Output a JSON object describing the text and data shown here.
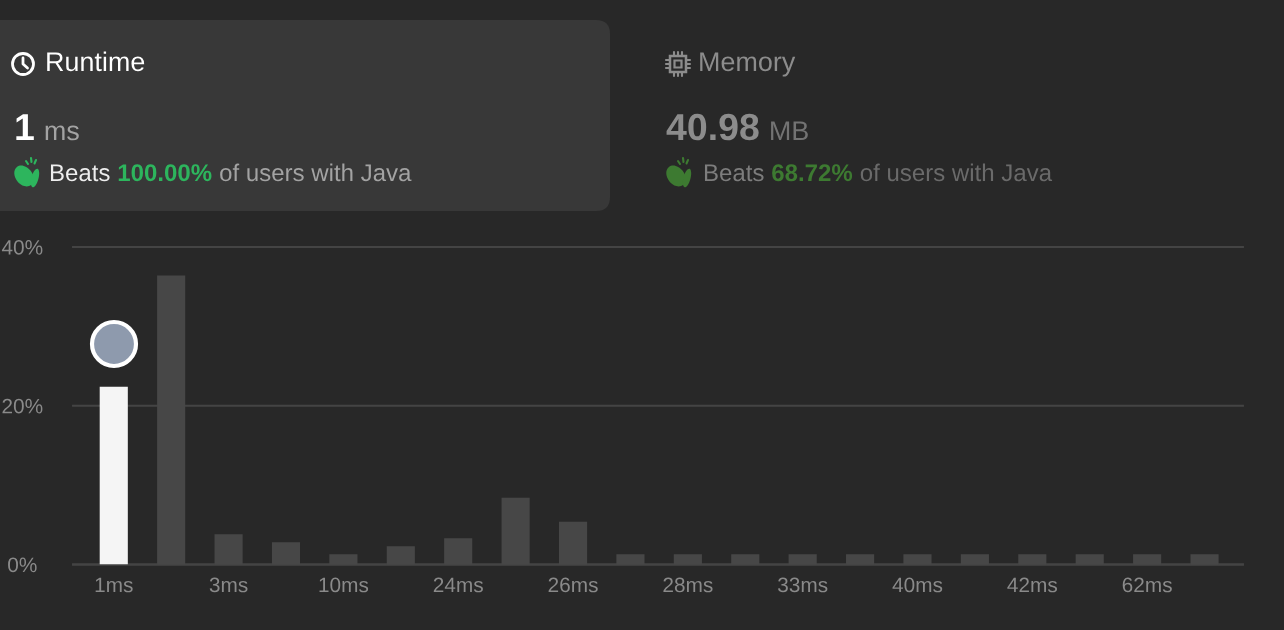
{
  "chart_data": {
    "type": "bar",
    "categories": [
      "1ms",
      null,
      "3ms",
      null,
      "10ms",
      null,
      "24ms",
      null,
      "26ms",
      null,
      "28ms",
      null,
      "33ms",
      null,
      "40ms",
      null,
      "42ms",
      null,
      "62ms",
      null
    ],
    "values": [
      22.4,
      36.4,
      3.8,
      2.8,
      1.3,
      2.3,
      3.3,
      8.4,
      5.4,
      1.3,
      1.3,
      1.3,
      1.3,
      1.3,
      1.3,
      1.3,
      1.3,
      1.3,
      1.3,
      1.3
    ],
    "colors": [
      "#f5f5f5",
      "#474747",
      "#474747",
      "#474747",
      "#474747",
      "#474747",
      "#474747",
      "#474747",
      "#474747",
      "#474747",
      "#474747",
      "#474747",
      "#474747",
      "#474747",
      "#474747",
      "#474747",
      "#474747",
      "#474747",
      "#474747",
      "#474747"
    ],
    "ylim": [
      0,
      40
    ],
    "yticks": [
      {
        "value": 0,
        "label": "0%"
      },
      {
        "value": 20,
        "label": "20%"
      },
      {
        "value": 40,
        "label": "40%"
      }
    ],
    "grid": "y",
    "annotations": [
      "Runtime",
      "1",
      "ms",
      "Beats",
      "100.00%",
      "of users with Java",
      "Memory",
      "40.98",
      "MB",
      "Beats",
      "68.72%",
      "of users with Java"
    ]
  }
}
